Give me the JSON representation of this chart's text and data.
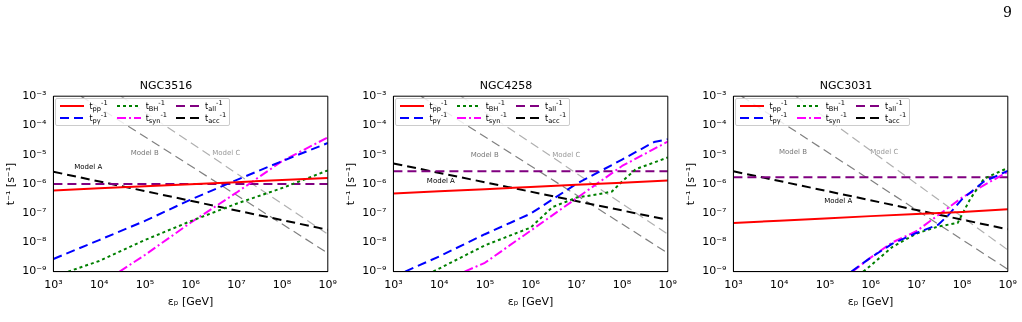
{
  "chart_data": [
    {
      "type": "line",
      "title": "NGC3516",
      "xlabel": "εₚ [GeV]",
      "ylabel": "t⁻¹ [s⁻¹]",
      "log": "xy",
      "grid": false,
      "legend": "top left",
      "marker": "none",
      "xlim": [
        1000,
        1000000000
      ],
      "ylim": [
        1e-09,
        0.001
      ],
      "xticks": [
        {
          "value": 1000,
          "label": "10³"
        },
        {
          "value": 10000,
          "label": "10⁴"
        },
        {
          "value": 100000,
          "label": "10⁵"
        },
        {
          "value": 1000000,
          "label": "10⁶"
        },
        {
          "value": 10000000,
          "label": "10⁷"
        },
        {
          "value": 100000000,
          "label": "10⁸"
        },
        {
          "value": 1000000000,
          "label": "10⁹"
        }
      ],
      "yticks": [
        {
          "value": 1e-09,
          "label": "10⁻⁹"
        },
        {
          "value": 1e-08,
          "label": "10⁻⁸"
        },
        {
          "value": 1e-07,
          "label": "10⁻⁷"
        },
        {
          "value": 1e-06,
          "label": "10⁻⁶"
        },
        {
          "value": 1e-05,
          "label": "10⁻⁵"
        },
        {
          "value": 0.0001,
          "label": "10⁻⁴"
        },
        {
          "value": 0.001,
          "label": "10⁻³"
        }
      ],
      "series": [
        {
          "name": "t$_{pp}$$^{-1}$",
          "color": "#ff0000",
          "line_style": "solid",
          "x": [
            1000,
            10000,
            100000,
            1000000,
            10000000,
            100000000,
            1000000000
          ],
          "values": [
            6e-07,
            7.1e-07,
            8.3e-07,
            9.8e-07,
            1.15e-06,
            1.35e-06,
            1.6e-06
          ]
        },
        {
          "name": "t$_{pγ}$$^{-1}$",
          "color": "#0000ff",
          "line_style": "dashed",
          "x": [
            1000,
            10000,
            100000,
            1000000,
            10000000,
            100000000,
            1000000000
          ],
          "values": [
            2.7e-09,
            1.2e-08,
            5.4e-08,
            2.9e-07,
            1.35e-06,
            6e-06,
            2.5e-05
          ]
        },
        {
          "name": "t$_{BH}$$^{-1}$",
          "color": "#008000",
          "line_style": "dotted",
          "x": [
            2100,
            10000,
            100000,
            1000000,
            10000000,
            100000000,
            1000000000
          ],
          "values": [
            1e-09,
            2.3e-09,
            1.2e-08,
            5.3e-08,
            2.1e-07,
            7.2e-07,
            2.9e-06
          ]
        },
        {
          "name": "t$_{syn}$$^{-1}$",
          "color": "#ff00ff",
          "line_style": "dashdot",
          "x": [
            28000,
            100000,
            1000000,
            10000000,
            100000000,
            1000000000
          ],
          "values": [
            1e-09,
            3.7e-09,
            4.7e-08,
            5e-07,
            6e-06,
            3.9e-05
          ]
        },
        {
          "name": "t$_{all}$$^{-1}$",
          "color": "#800080",
          "line_style": "dashed",
          "x": [
            1000,
            1000000000
          ],
          "values": [
            1e-06,
            1e-06
          ]
        },
        {
          "name": "t$_{acc}$$^{-1}$",
          "color": "#000000",
          "line_style": "dashed",
          "x": [
            1000,
            1000000000
          ],
          "values": [
            2.6e-06,
            2.7e-08
          ]
        },
        {
          "color": "#808080",
          "line_style": "dashed",
          "x": [
            4000,
            1000000000
          ],
          "values": [
            0.001,
            4.3e-09
          ]
        },
        {
          "color": "#b0b0b0",
          "line_style": "dashed",
          "x": [
            30000,
            1000000000
          ],
          "values": [
            0.001,
            1.9e-08
          ]
        }
      ],
      "annotations": [
        "Model A",
        "Model B",
        "Model C"
      ]
    },
    {
      "type": "line",
      "title": "NGC4258",
      "xlabel": "εₚ [GeV]",
      "ylabel": "t⁻¹ [s⁻¹]",
      "log": "xy",
      "grid": false,
      "legend": "top left",
      "marker": "none",
      "xlim": [
        1000,
        1000000000
      ],
      "ylim": [
        1e-09,
        0.001
      ],
      "xticks": [
        {
          "value": 1000,
          "label": "10³"
        },
        {
          "value": 10000,
          "label": "10⁴"
        },
        {
          "value": 100000,
          "label": "10⁵"
        },
        {
          "value": 1000000,
          "label": "10⁶"
        },
        {
          "value": 10000000,
          "label": "10⁷"
        },
        {
          "value": 100000000,
          "label": "10⁸"
        },
        {
          "value": 1000000000,
          "label": "10⁹"
        }
      ],
      "yticks": [
        {
          "value": 1e-09,
          "label": "10⁻⁹"
        },
        {
          "value": 1e-08,
          "label": "10⁻⁸"
        },
        {
          "value": 1e-07,
          "label": "10⁻⁷"
        },
        {
          "value": 1e-06,
          "label": "10⁻⁶"
        },
        {
          "value": 1e-05,
          "label": "10⁻⁵"
        },
        {
          "value": 0.0001,
          "label": "10⁻⁴"
        },
        {
          "value": 0.001,
          "label": "10⁻³"
        }
      ],
      "series": [
        {
          "name": "t$_{pp}$$^{-1}$",
          "color": "#ff0000",
          "line_style": "solid",
          "x": [
            1000,
            10000,
            100000,
            1000000,
            10000000,
            100000000,
            1000000000
          ],
          "values": [
            4.7e-07,
            5.6e-07,
            6.6e-07,
            7.9e-07,
            9.3e-07,
            1.1e-06,
            1.3e-06
          ]
        },
        {
          "name": "t$_{pγ}$$^{-1}$",
          "color": "#0000ff",
          "line_style": "dashed",
          "x": [
            1800,
            10000,
            100000,
            1000000,
            10000000,
            100000000,
            500000000,
            1000000000
          ],
          "values": [
            1e-09,
            3.3e-09,
            1.9e-08,
            9.6e-08,
            1e-06,
            6.8e-06,
            2.7e-05,
            3.4e-05
          ]
        },
        {
          "name": "t$_{BH}$$^{-1}$",
          "color": "#008000",
          "line_style": "dotted",
          "x": [
            7400,
            100000,
            1000000,
            3000000,
            10000000,
            30000000,
            60000000,
            100000000,
            200000000,
            1000000000
          ],
          "values": [
            1e-09,
            7.9e-09,
            3.2e-08,
            1.6e-07,
            3.4e-07,
            4.4e-07,
            5.5e-07,
            1.2e-06,
            3.2e-06,
            8e-06
          ]
        },
        {
          "name": "t$_{syn}$$^{-1}$",
          "color": "#ff00ff",
          "line_style": "dashdot",
          "x": [
            36000,
            100000,
            1000000,
            10000000,
            100000000,
            1000000000
          ],
          "values": [
            1e-09,
            2e-09,
            2.5e-08,
            3.2e-07,
            4.1e-06,
            2.8e-05
          ]
        },
        {
          "name": "t$_{all}$$^{-1}$",
          "color": "#800080",
          "line_style": "dashed",
          "x": [
            1000,
            1000000000
          ],
          "values": [
            2.7e-06,
            2.7e-06
          ]
        },
        {
          "name": "t$_{acc}$$^{-1}$",
          "color": "#000000",
          "line_style": "dashed",
          "x": [
            1000,
            1000000000
          ],
          "values": [
            5e-06,
            5.9e-08
          ]
        },
        {
          "color": "#808080",
          "line_style": "dashed",
          "x": [
            4000,
            1000000000
          ],
          "values": [
            0.001,
            4.3e-09
          ]
        },
        {
          "color": "#b0b0b0",
          "line_style": "dashed",
          "x": [
            30000,
            1000000000
          ],
          "values": [
            0.001,
            1.9e-08
          ]
        }
      ],
      "annotations": [
        "Model A",
        "Model B",
        "Model C"
      ]
    },
    {
      "type": "line",
      "title": "NGC3031",
      "xlabel": "εₚ [GeV]",
      "ylabel": "t⁻¹ [s⁻¹]",
      "log": "xy",
      "grid": false,
      "legend": "top left",
      "marker": "none",
      "xlim": [
        1000,
        1000000000
      ],
      "ylim": [
        1e-09,
        0.001
      ],
      "xticks": [
        {
          "value": 1000,
          "label": "10³"
        },
        {
          "value": 10000,
          "label": "10⁴"
        },
        {
          "value": 100000,
          "label": "10⁵"
        },
        {
          "value": 1000000,
          "label": "10⁶"
        },
        {
          "value": 10000000,
          "label": "10⁷"
        },
        {
          "value": 100000000,
          "label": "10⁸"
        },
        {
          "value": 1000000000,
          "label": "10⁹"
        }
      ],
      "yticks": [
        {
          "value": 1e-09,
          "label": "10⁻⁹"
        },
        {
          "value": 1e-08,
          "label": "10⁻⁸"
        },
        {
          "value": 1e-07,
          "label": "10⁻⁷"
        },
        {
          "value": 1e-06,
          "label": "10⁻⁶"
        },
        {
          "value": 1e-05,
          "label": "10⁻⁵"
        },
        {
          "value": 0.0001,
          "label": "10⁻⁴"
        },
        {
          "value": 0.001,
          "label": "10⁻³"
        }
      ],
      "series": [
        {
          "name": "t$_{pp}$$^{-1}$",
          "color": "#ff0000",
          "line_style": "solid",
          "x": [
            1000,
            10000,
            100000,
            1000000,
            10000000,
            100000000,
            1000000000
          ],
          "values": [
            4.6e-08,
            5.5e-08,
            6.6e-08,
            7.9e-08,
            9.3e-08,
            1.1e-07,
            1.35e-07
          ]
        },
        {
          "name": "t$_{pγ}$$^{-1}$",
          "color": "#0000ff",
          "line_style": "dashed",
          "x": [
            380000,
            1000000,
            3000000,
            10000000,
            30000000,
            50000000,
            100000000,
            300000000,
            1000000000
          ],
          "values": [
            1e-09,
            3e-09,
            9e-09,
            2.1e-08,
            4e-08,
            8.5e-08,
            3e-07,
            1.2e-06,
            2.8e-06
          ]
        },
        {
          "name": "t$_{BH}$$^{-1}$",
          "color": "#008000",
          "line_style": "dotted",
          "x": [
            690000,
            1000000,
            3000000,
            10000000,
            30000000,
            80000000,
            150000000,
            300000000,
            1000000000
          ],
          "values": [
            1e-09,
            1.6e-09,
            7e-09,
            2e-08,
            3.5e-08,
            4.6e-08,
            3e-07,
            1.5e-06,
            3.5e-06
          ]
        },
        {
          "name": "t$_{syn}$$^{-1}$",
          "color": "#ff00ff",
          "line_style": "dashdot",
          "x": [
            400000,
            1000000,
            3000000,
            10000000,
            100000000,
            1000000000
          ],
          "values": [
            1e-09,
            3e-09,
            1e-08,
            2.4e-08,
            3.4e-07,
            2.6e-06
          ]
        },
        {
          "name": "t$_{all}$$^{-1}$",
          "color": "#800080",
          "line_style": "dashed",
          "x": [
            1000,
            1000000000
          ],
          "values": [
            1.7e-06,
            1.7e-06
          ]
        },
        {
          "name": "t$_{acc}$$^{-1}$",
          "color": "#000000",
          "line_style": "dashed",
          "x": [
            1000,
            1000000000
          ],
          "values": [
            2.7e-06,
            2.8e-08
          ]
        },
        {
          "color": "#808080",
          "line_style": "dashed",
          "x": [
            1500,
            1000000000
          ],
          "values": [
            0.001,
            1.2e-09
          ]
        },
        {
          "color": "#b0b0b0",
          "line_style": "dashed",
          "x": [
            23000,
            1000000000
          ],
          "values": [
            0.001,
            5.5e-09
          ]
        }
      ],
      "annotations": [
        "9",
        "Model A",
        "Model B",
        "Model C"
      ]
    }
  ]
}
